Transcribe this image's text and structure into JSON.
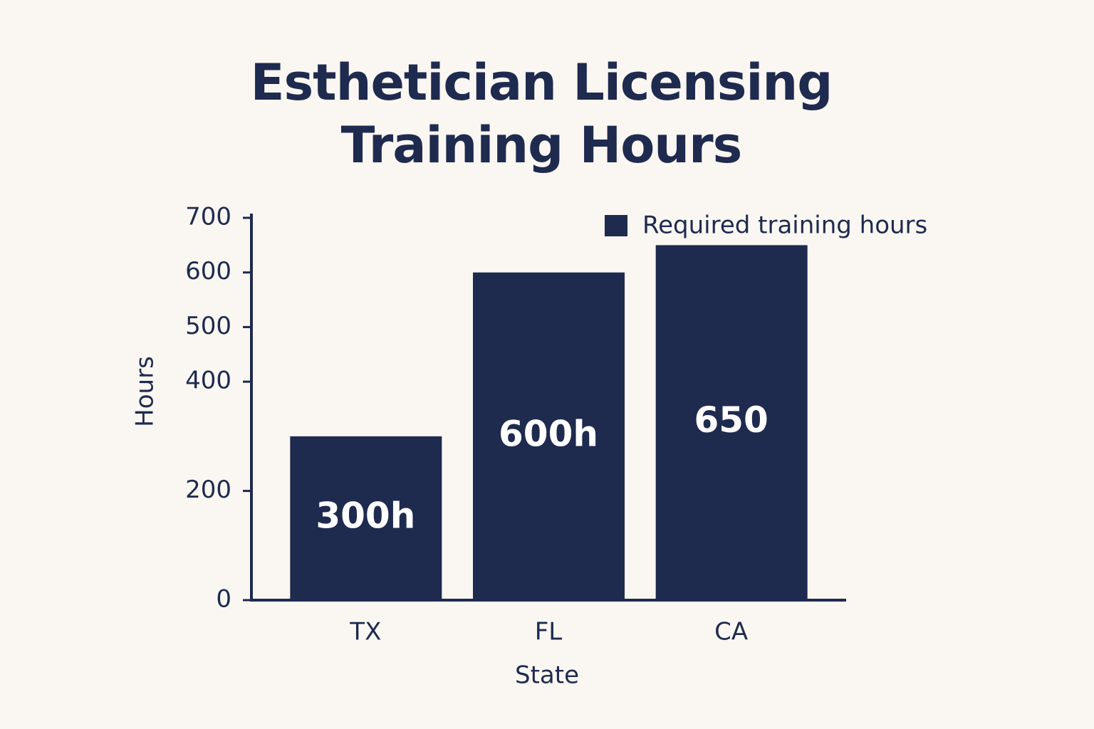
{
  "chart_data": {
    "type": "bar",
    "title": "Esthetician Licensing Training Hours",
    "x_label": "State",
    "y_label": "Hours",
    "categories": [
      "TX",
      "FL",
      "CA"
    ],
    "series": [
      {
        "name": "Required training hours",
        "color": "#1f2a4f",
        "values": [
          300,
          600,
          650
        ],
        "value_labels": [
          "300h",
          "600h",
          "650"
        ]
      }
    ],
    "ylim": [
      0,
      700
    ],
    "yticks": [
      0,
      200,
      400,
      500,
      600,
      700
    ],
    "legend": "top-right",
    "grid": false
  }
}
